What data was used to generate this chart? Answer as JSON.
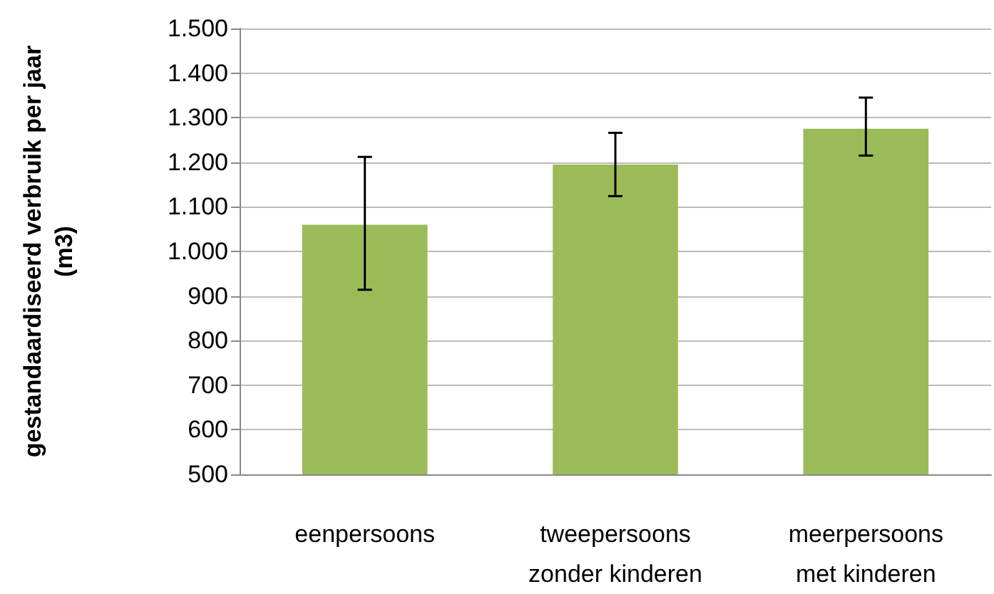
{
  "chart_data": {
    "type": "bar",
    "ylabel": "gestandaardiseerd verbruik per jaar\n(m3)",
    "categories": [
      "eenpersoons",
      "tweepersoons\nzonder kinderen",
      "meerpersoons\nmet kinderen"
    ],
    "values": [
      1060,
      1195,
      1275
    ],
    "color": "#9bbb59",
    "errors": [
      [
        914,
        1212
      ],
      [
        1124,
        1266
      ],
      [
        1215,
        1345
      ]
    ],
    "ylim": [
      500,
      1500
    ],
    "yticks": [
      {
        "value": 500,
        "label": "500"
      },
      {
        "value": 600,
        "label": "600"
      },
      {
        "value": 700,
        "label": "700"
      },
      {
        "value": 800,
        "label": "800"
      },
      {
        "value": 900,
        "label": "900"
      },
      {
        "value": 1000,
        "label": "1.000"
      },
      {
        "value": 1100,
        "label": "1.100"
      },
      {
        "value": 1200,
        "label": "1.200"
      },
      {
        "value": 1300,
        "label": "1.300"
      },
      {
        "value": 1400,
        "label": "1.400"
      },
      {
        "value": 1500,
        "label": "1.500"
      }
    ],
    "grid": "y"
  }
}
